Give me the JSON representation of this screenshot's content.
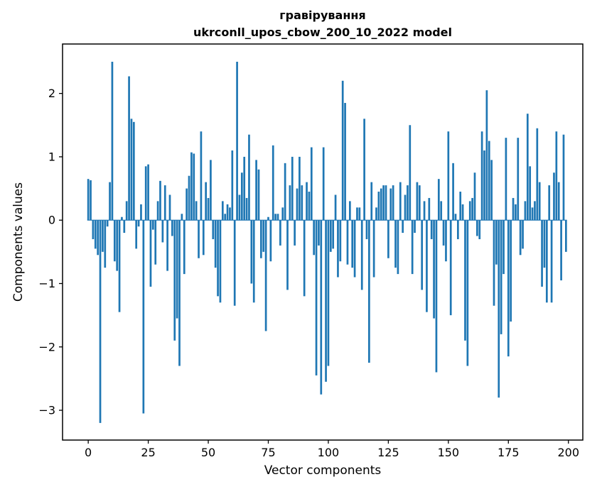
{
  "figure": {
    "title_line1": "гравірування",
    "title_line2": "ukrconll_upos_cbow_200_10_2022 model",
    "xlabel": "Vector components",
    "ylabel": "Components values"
  },
  "chart_data": {
    "type": "bar",
    "title": "гравірування\nukrconll_upos_cbow_200_10_2022 model",
    "xlabel": "Vector components",
    "ylabel": "Components values",
    "bar_color": "#1f77b4",
    "frame_color": "#000000",
    "legend": "none",
    "grid": false,
    "xlim": [
      -10.7,
      206
    ],
    "ylim": [
      -3.47,
      2.78
    ],
    "xticks": [
      0,
      25,
      50,
      75,
      100,
      125,
      150,
      175,
      200
    ],
    "yticks": [
      -3,
      -2,
      -1,
      0,
      1,
      2
    ],
    "x_start": 0,
    "bar_width": 0.8,
    "values": [
      0.65,
      0.63,
      -0.3,
      -0.45,
      -0.55,
      -3.2,
      -0.5,
      -0.75,
      -0.1,
      0.6,
      2.5,
      -0.65,
      -0.8,
      -1.45,
      0.05,
      -0.2,
      0.3,
      2.27,
      1.6,
      1.55,
      -0.45,
      -0.1,
      0.25,
      -3.05,
      0.85,
      0.88,
      -1.05,
      -0.15,
      -0.7,
      0.3,
      0.62,
      -0.35,
      0.55,
      -0.8,
      0.4,
      -0.25,
      -1.9,
      -1.55,
      -2.3,
      0.1,
      -0.85,
      0.5,
      0.7,
      1.07,
      1.05,
      0.3,
      -0.6,
      1.4,
      -0.55,
      0.6,
      0.35,
      0.95,
      -0.3,
      -0.75,
      -1.2,
      -1.3,
      0.3,
      0.1,
      0.25,
      0.2,
      1.1,
      -1.35,
      2.5,
      0.4,
      0.75,
      1.0,
      0.35,
      1.35,
      -1.0,
      -1.3,
      0.95,
      0.8,
      -0.6,
      -0.5,
      -1.75,
      0.05,
      -0.65,
      1.18,
      0.1,
      0.1,
      -0.4,
      0.2,
      0.9,
      -1.1,
      0.55,
      1.0,
      -0.4,
      0.5,
      1.0,
      0.55,
      -1.2,
      0.6,
      0.45,
      1.15,
      -0.55,
      -2.45,
      -0.4,
      -2.75,
      1.15,
      -2.55,
      -2.3,
      -0.5,
      -0.45,
      0.4,
      -0.9,
      -0.65,
      2.2,
      1.85,
      -0.7,
      0.3,
      -0.75,
      -0.9,
      0.2,
      0.2,
      -1.1,
      1.6,
      -0.3,
      -2.25,
      0.6,
      -0.9,
      0.2,
      0.45,
      0.5,
      0.55,
      0.55,
      -0.6,
      0.5,
      0.55,
      -0.75,
      -0.85,
      0.6,
      -0.2,
      0.4,
      0.55,
      1.5,
      -0.85,
      -0.2,
      0.6,
      0.55,
      -1.1,
      0.3,
      -1.45,
      0.35,
      -0.3,
      -1.55,
      -2.4,
      0.65,
      0.3,
      -0.4,
      -0.65,
      1.4,
      -1.5,
      0.9,
      0.1,
      -0.3,
      0.45,
      0.25,
      -1.9,
      -2.3,
      0.3,
      0.35,
      0.75,
      -0.25,
      -0.3,
      1.4,
      1.1,
      2.05,
      1.25,
      0.95,
      -1.35,
      -0.7,
      -2.8,
      -1.8,
      -0.85,
      1.3,
      -2.15,
      -1.6,
      0.35,
      0.25,
      1.3,
      -0.55,
      -0.45,
      0.3,
      1.68,
      0.85,
      0.2,
      0.3,
      1.45,
      0.6,
      -1.05,
      -0.75,
      -1.3,
      0.55,
      -1.3,
      0.75,
      1.4,
      0.6,
      -0.95,
      1.35,
      -0.5
    ]
  }
}
